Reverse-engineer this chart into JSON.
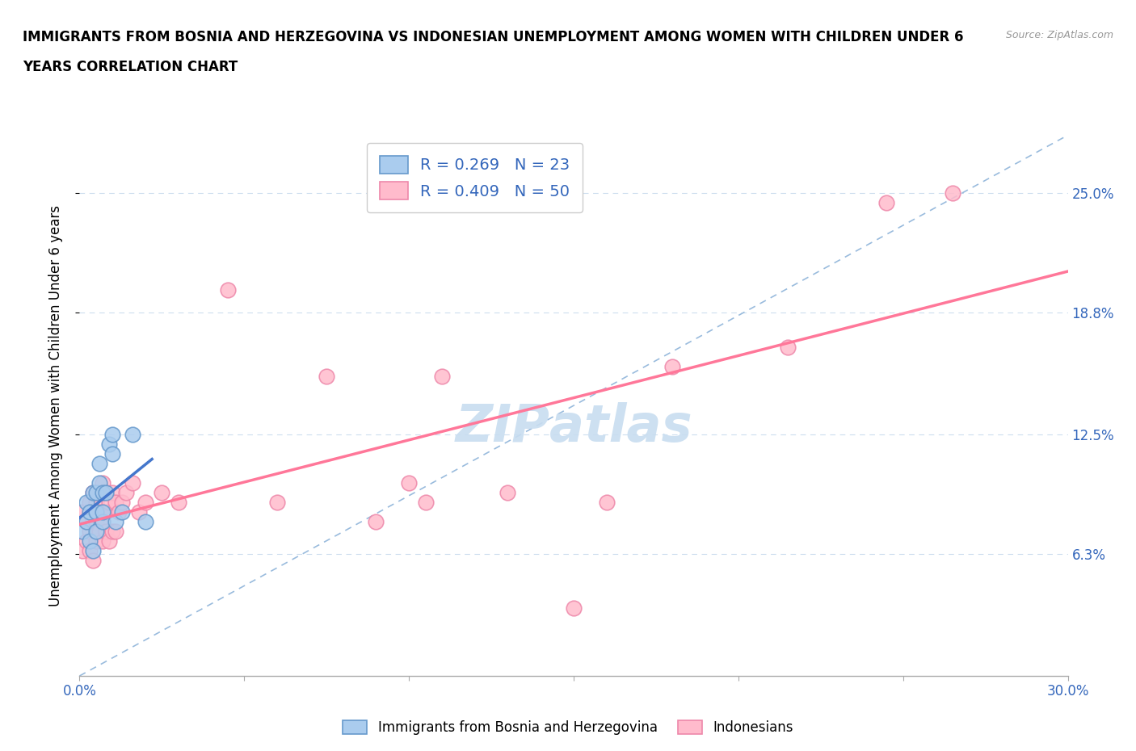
{
  "title_line1": "IMMIGRANTS FROM BOSNIA AND HERZEGOVINA VS INDONESIAN UNEMPLOYMENT AMONG WOMEN WITH CHILDREN UNDER 6",
  "title_line2": "YEARS CORRELATION CHART",
  "source": "Source: ZipAtlas.com",
  "ylabel": "Unemployment Among Women with Children Under 6 years",
  "xlim": [
    0.0,
    0.3
  ],
  "ylim": [
    0.0,
    0.28
  ],
  "xtick_positions": [
    0.0,
    0.05,
    0.1,
    0.15,
    0.2,
    0.25,
    0.3
  ],
  "xticklabels": [
    "0.0%",
    "",
    "",
    "",
    "",
    "",
    "30.0%"
  ],
  "ytick_positions": [
    0.063,
    0.125,
    0.188,
    0.25
  ],
  "yticklabels": [
    "6.3%",
    "12.5%",
    "18.8%",
    "25.0%"
  ],
  "bosnia_R": 0.269,
  "bosnia_N": 23,
  "indonesian_R": 0.409,
  "indonesian_N": 50,
  "diagonal_color": "#99bbdd",
  "bosnia_dot_color": "#aaccee",
  "bosnia_edge_color": "#6699cc",
  "indonesian_dot_color": "#ffbbcc",
  "indonesian_edge_color": "#ee88aa",
  "bosnia_line_color": "#4477cc",
  "indonesian_line_color": "#ff7799",
  "grid_color": "#ccddee",
  "watermark_color": "#c8ddf0",
  "bosnia_x": [
    0.001,
    0.002,
    0.002,
    0.003,
    0.003,
    0.004,
    0.004,
    0.005,
    0.005,
    0.005,
    0.006,
    0.006,
    0.007,
    0.007,
    0.007,
    0.008,
    0.009,
    0.01,
    0.01,
    0.011,
    0.013,
    0.016,
    0.02
  ],
  "bosnia_y": [
    0.075,
    0.08,
    0.09,
    0.07,
    0.085,
    0.065,
    0.095,
    0.075,
    0.085,
    0.095,
    0.1,
    0.11,
    0.08,
    0.085,
    0.095,
    0.095,
    0.12,
    0.115,
    0.125,
    0.08,
    0.085,
    0.125,
    0.08
  ],
  "indonesian_x": [
    0.001,
    0.001,
    0.002,
    0.002,
    0.003,
    0.003,
    0.003,
    0.004,
    0.004,
    0.004,
    0.005,
    0.005,
    0.005,
    0.006,
    0.006,
    0.006,
    0.007,
    0.007,
    0.007,
    0.008,
    0.008,
    0.008,
    0.009,
    0.009,
    0.01,
    0.01,
    0.011,
    0.011,
    0.012,
    0.013,
    0.014,
    0.016,
    0.018,
    0.02,
    0.025,
    0.03,
    0.045,
    0.06,
    0.075,
    0.09,
    0.1,
    0.105,
    0.11,
    0.13,
    0.15,
    0.16,
    0.18,
    0.215,
    0.245,
    0.265
  ],
  "indonesian_y": [
    0.065,
    0.085,
    0.07,
    0.08,
    0.065,
    0.075,
    0.09,
    0.06,
    0.08,
    0.095,
    0.07,
    0.08,
    0.09,
    0.075,
    0.085,
    0.095,
    0.07,
    0.08,
    0.1,
    0.075,
    0.085,
    0.095,
    0.07,
    0.09,
    0.075,
    0.095,
    0.075,
    0.09,
    0.085,
    0.09,
    0.095,
    0.1,
    0.085,
    0.09,
    0.095,
    0.09,
    0.2,
    0.09,
    0.155,
    0.08,
    0.1,
    0.09,
    0.155,
    0.095,
    0.035,
    0.09,
    0.16,
    0.17,
    0.245,
    0.25
  ]
}
